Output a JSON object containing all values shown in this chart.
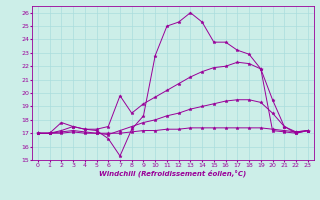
{
  "xlabel": "Windchill (Refroidissement éolien,°C)",
  "bg_color": "#cceee8",
  "grid_color": "#aadddd",
  "line_color": "#990099",
  "xlim": [
    -0.5,
    23.5
  ],
  "ylim": [
    15,
    26.5
  ],
  "yticks": [
    15,
    16,
    17,
    18,
    19,
    20,
    21,
    22,
    23,
    24,
    25,
    26
  ],
  "xticks": [
    0,
    1,
    2,
    3,
    4,
    5,
    6,
    7,
    8,
    9,
    10,
    11,
    12,
    13,
    14,
    15,
    16,
    17,
    18,
    19,
    20,
    21,
    22,
    23
  ],
  "xtick_labels": [
    "0",
    "1",
    "2",
    "3",
    "4",
    "5",
    "6",
    "7",
    "8",
    "9",
    "10",
    "11",
    "12",
    "13",
    "14",
    "15",
    "16",
    "17",
    "18",
    "19",
    "20",
    "21",
    "22",
    "23"
  ],
  "lines": [
    {
      "x": [
        0,
        1,
        2,
        3,
        4,
        5,
        6,
        7,
        8,
        9,
        10,
        11,
        12,
        13,
        14,
        15,
        16,
        17,
        18,
        19,
        20,
        21,
        22,
        23
      ],
      "y": [
        17.0,
        17.0,
        17.8,
        17.5,
        17.3,
        17.2,
        16.6,
        15.3,
        17.3,
        18.3,
        22.8,
        25.0,
        25.3,
        26.0,
        25.3,
        23.8,
        23.8,
        23.2,
        22.9,
        21.8,
        17.2,
        17.1,
        17.0,
        17.2
      ]
    },
    {
      "x": [
        0,
        1,
        2,
        3,
        4,
        5,
        6,
        7,
        8,
        9,
        10,
        11,
        12,
        13,
        14,
        15,
        16,
        17,
        18,
        19,
        20,
        21,
        22,
        23
      ],
      "y": [
        17.0,
        17.0,
        17.2,
        17.5,
        17.3,
        17.3,
        17.5,
        19.8,
        18.5,
        19.2,
        19.7,
        20.2,
        20.7,
        21.2,
        21.6,
        21.9,
        22.0,
        22.3,
        22.2,
        21.8,
        19.5,
        17.5,
        17.0,
        17.2
      ]
    },
    {
      "x": [
        0,
        1,
        2,
        3,
        4,
        5,
        6,
        7,
        8,
        9,
        10,
        11,
        12,
        13,
        14,
        15,
        16,
        17,
        18,
        19,
        20,
        21,
        22,
        23
      ],
      "y": [
        17.0,
        17.0,
        17.1,
        17.2,
        17.1,
        17.0,
        16.9,
        17.2,
        17.5,
        17.8,
        18.0,
        18.3,
        18.5,
        18.8,
        19.0,
        19.2,
        19.4,
        19.5,
        19.5,
        19.3,
        18.5,
        17.5,
        17.1,
        17.2
      ]
    },
    {
      "x": [
        0,
        1,
        2,
        3,
        4,
        5,
        6,
        7,
        8,
        9,
        10,
        11,
        12,
        13,
        14,
        15,
        16,
        17,
        18,
        19,
        20,
        21,
        22,
        23
      ],
      "y": [
        17.0,
        17.0,
        17.0,
        17.1,
        17.0,
        17.0,
        17.0,
        17.0,
        17.1,
        17.2,
        17.2,
        17.3,
        17.3,
        17.4,
        17.4,
        17.4,
        17.4,
        17.4,
        17.4,
        17.4,
        17.3,
        17.2,
        17.1,
        17.2
      ]
    }
  ]
}
